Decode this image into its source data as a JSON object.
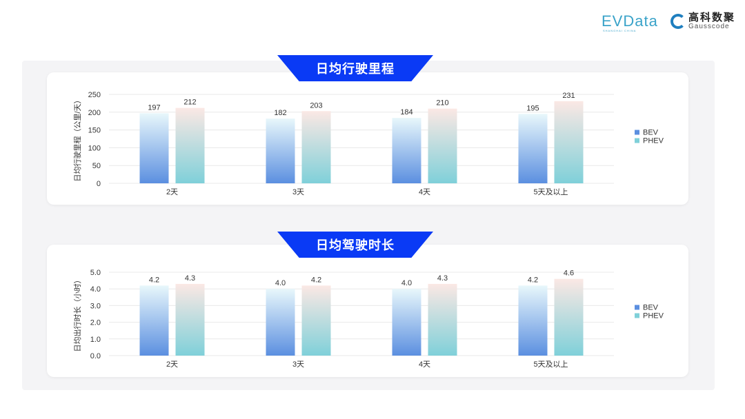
{
  "logos": {
    "evdata": "EVData",
    "evdata_sub": "SHANGHAI CHINA",
    "gauss_cn": "高科数聚",
    "gauss_en": "Gausscode"
  },
  "colors": {
    "banner": "#0a3af5",
    "bev_bottom": "#5b8fe0",
    "bev_top": "#e8f7fb",
    "phev_bottom": "#7fd0d9",
    "phev_top": "#fbe8e4"
  },
  "chart_data": [
    {
      "type": "bar",
      "title": "日均行驶里程",
      "ylabel": "日均行驶里程（公里/天）",
      "categories": [
        "2天",
        "3天",
        "4天",
        "5天及以上"
      ],
      "series": [
        {
          "name": "BEV",
          "values": [
            197,
            182,
            184,
            195
          ]
        },
        {
          "name": "PHEV",
          "values": [
            212,
            203,
            210,
            231
          ]
        }
      ],
      "ylim": [
        0,
        250
      ],
      "yticks": [
        "0",
        "50",
        "100",
        "150",
        "200",
        "250"
      ],
      "grid": true,
      "legend": "right"
    },
    {
      "type": "bar",
      "title": "日均驾驶时长",
      "ylabel": "日均出行时长（小时）",
      "categories": [
        "2天",
        "3天",
        "4天",
        "5天及以上"
      ],
      "series": [
        {
          "name": "BEV",
          "values": [
            4.2,
            4.0,
            4.0,
            4.2
          ]
        },
        {
          "name": "PHEV",
          "values": [
            4.3,
            4.2,
            4.3,
            4.6
          ]
        }
      ],
      "ylim": [
        0,
        5
      ],
      "yticks": [
        "0.0",
        "1.0",
        "2.0",
        "3.0",
        "4.0",
        "5.0"
      ],
      "grid": true,
      "legend": "right"
    }
  ]
}
